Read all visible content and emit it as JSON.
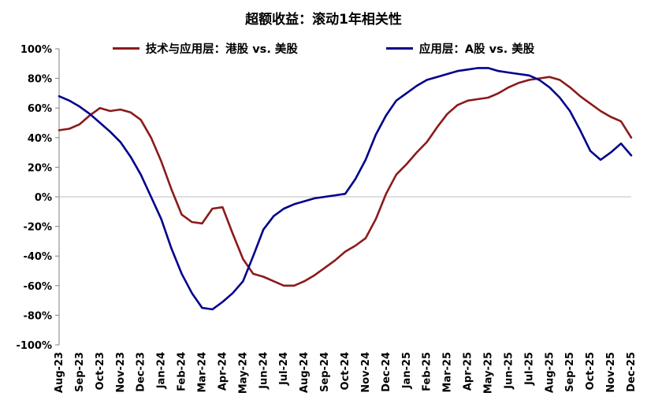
{
  "chart_data": {
    "type": "line",
    "title": "超额收益：滚动1年相关性",
    "legend_position": "top",
    "grid": "zero-line-only",
    "ylim": [
      -100,
      100
    ],
    "y_tick_labels": [
      "100%",
      "80%",
      "60%",
      "40%",
      "20%",
      "0%",
      "-20%",
      "-40%",
      "-60%",
      "-80%",
      "-100%"
    ],
    "x_labels": [
      "Aug-23",
      "Sep-23",
      "Oct-23",
      "Nov-23",
      "Dec-23",
      "Jan-24",
      "Feb-24",
      "Mar-24",
      "Apr-24",
      "May-24",
      "Jun-24",
      "Jul-24",
      "Aug-24",
      "Sep-24",
      "Oct-24",
      "Nov-24",
      "Dec-24",
      "Jan-25",
      "Feb-25",
      "Mar-25",
      "Apr-25",
      "May-25",
      "Jun-25",
      "Jul-25",
      "Aug-25",
      "Sep-25",
      "Oct-25",
      "Nov-25",
      "Dec-25"
    ],
    "x_interval_months": 0.5,
    "series": [
      {
        "name": "技术与应用层：港股 vs. 美股",
        "color": "#8B1A1A",
        "values": [
          45,
          46,
          49,
          55,
          60,
          58,
          59,
          57,
          52,
          40,
          24,
          5,
          -12,
          -17,
          -18,
          -8,
          -7,
          -25,
          -42,
          -52,
          -54,
          -57,
          -60,
          -60,
          -57,
          -53,
          -48,
          -43,
          -37,
          -33,
          -28,
          -15,
          2,
          15,
          22,
          30,
          37,
          47,
          56,
          62,
          65,
          66,
          67,
          70,
          74,
          77,
          79,
          80,
          81,
          79,
          74,
          68,
          63,
          58,
          54,
          51,
          40
        ]
      },
      {
        "name": "应用层：A股 vs. 美股",
        "color": "#00008B",
        "values": [
          68,
          65,
          61,
          56,
          50,
          44,
          37,
          27,
          15,
          0,
          -15,
          -35,
          -52,
          -65,
          -75,
          -76,
          -71,
          -65,
          -57,
          -40,
          -22,
          -13,
          -8,
          -5,
          -3,
          -1,
          0,
          1,
          2,
          12,
          25,
          42,
          55,
          65,
          70,
          75,
          79,
          81,
          83,
          85,
          86,
          87,
          87,
          85,
          84,
          83,
          82,
          79,
          74,
          67,
          58,
          45,
          31,
          25,
          30,
          36,
          28
        ]
      }
    ]
  }
}
